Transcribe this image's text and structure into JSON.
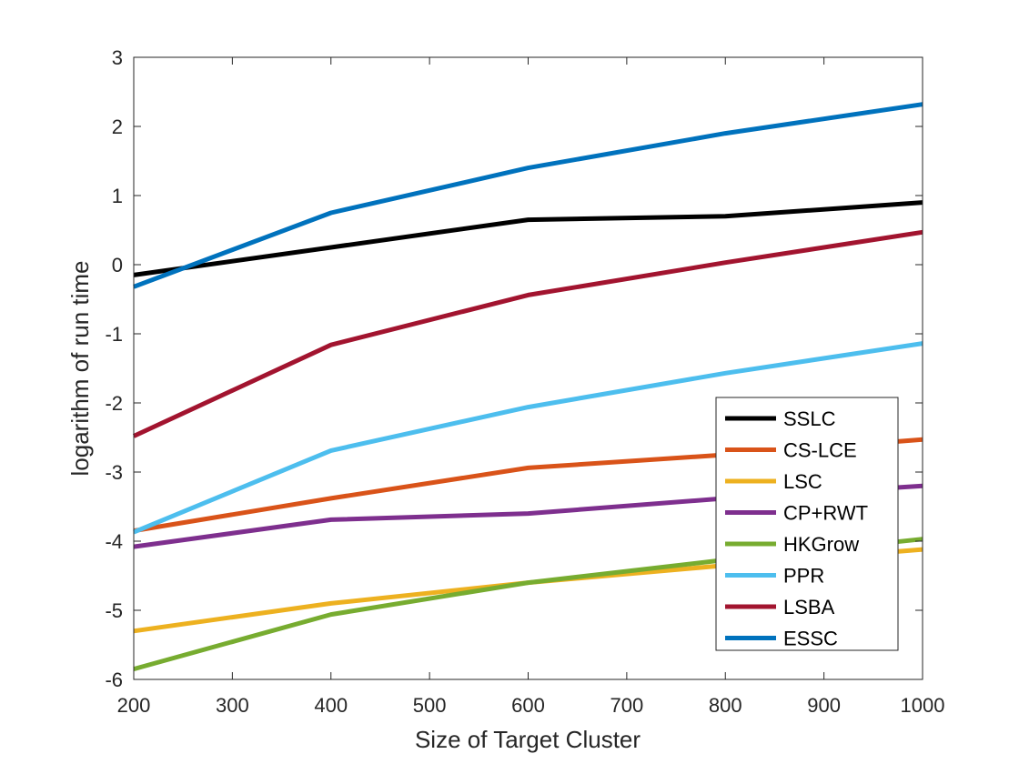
{
  "chart_data": {
    "type": "line",
    "title": "",
    "xlabel": "Size of Target Cluster",
    "ylabel": "logarithm of run time",
    "xlim": [
      200,
      1000
    ],
    "ylim": [
      -6,
      3
    ],
    "xticks": [
      200,
      300,
      400,
      500,
      600,
      700,
      800,
      900,
      1000
    ],
    "yticks": [
      3,
      2,
      1,
      0,
      -1,
      -2,
      -3,
      -4,
      -5,
      -6
    ],
    "grid": false,
    "legend_position": "lower-right",
    "x": [
      200,
      400,
      600,
      800,
      1000
    ],
    "series": [
      {
        "name": "SSLC",
        "color": "#000000",
        "values": [
          -0.15,
          0.25,
          0.65,
          0.7,
          0.9
        ]
      },
      {
        "name": "CS-LCE",
        "color": "#D95319",
        "values": [
          -3.85,
          -3.38,
          -2.94,
          -2.75,
          -2.53
        ]
      },
      {
        "name": "LSC",
        "color": "#EDB120",
        "values": [
          -5.3,
          -4.9,
          -4.6,
          -4.35,
          -4.12
        ]
      },
      {
        "name": "CP+RWT",
        "color": "#7E2F8E",
        "values": [
          -4.08,
          -3.69,
          -3.6,
          -3.38,
          -3.2
        ]
      },
      {
        "name": "HKGrow",
        "color": "#77AC30",
        "values": [
          -5.85,
          -5.06,
          -4.6,
          -4.27,
          -3.97
        ]
      },
      {
        "name": "PPR",
        "color": "#4DBEEE",
        "values": [
          -3.87,
          -2.69,
          -2.06,
          -1.57,
          -1.14
        ]
      },
      {
        "name": "LSBA",
        "color": "#A2142F",
        "values": [
          -2.48,
          -1.16,
          -0.44,
          0.03,
          0.47
        ]
      },
      {
        "name": "ESSC",
        "color": "#0072BD",
        "values": [
          -0.32,
          0.75,
          1.4,
          1.9,
          2.32
        ]
      }
    ]
  }
}
